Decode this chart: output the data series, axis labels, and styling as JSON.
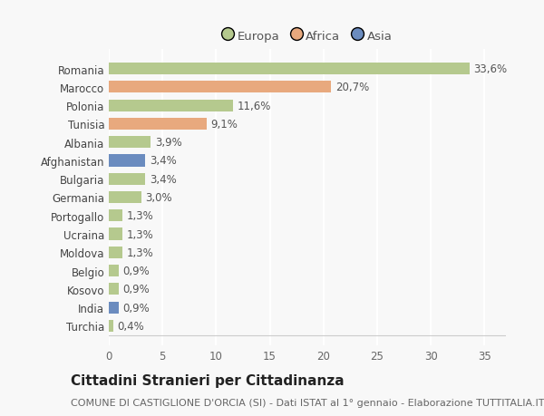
{
  "categories": [
    "Turchia",
    "India",
    "Kosovo",
    "Belgio",
    "Moldova",
    "Ucraina",
    "Portogallo",
    "Germania",
    "Bulgaria",
    "Afghanistan",
    "Albania",
    "Tunisia",
    "Polonia",
    "Marocco",
    "Romania"
  ],
  "values": [
    0.4,
    0.9,
    0.9,
    0.9,
    1.3,
    1.3,
    1.3,
    3.0,
    3.4,
    3.4,
    3.9,
    9.1,
    11.6,
    20.7,
    33.6
  ],
  "labels": [
    "0,4%",
    "0,9%",
    "0,9%",
    "0,9%",
    "1,3%",
    "1,3%",
    "1,3%",
    "3,0%",
    "3,4%",
    "3,4%",
    "3,9%",
    "9,1%",
    "11,6%",
    "20,7%",
    "33,6%"
  ],
  "continents": [
    "Europa",
    "Asia",
    "Europa",
    "Europa",
    "Europa",
    "Europa",
    "Europa",
    "Europa",
    "Europa",
    "Asia",
    "Europa",
    "Africa",
    "Europa",
    "Africa",
    "Europa"
  ],
  "colors": {
    "Europa": "#b5c98e",
    "Africa": "#e8a97e",
    "Asia": "#6b8cbf"
  },
  "legend_order": [
    "Europa",
    "Africa",
    "Asia"
  ],
  "legend_colors": [
    "#b5c98e",
    "#e8a97e",
    "#6b8cbf"
  ],
  "title": "Cittadini Stranieri per Cittadinanza",
  "subtitle": "COMUNE DI CASTIGLIONE D'ORCIA (SI) - Dati ISTAT al 1° gennaio - Elaborazione TUTTITALIA.IT",
  "xlim": [
    0,
    37
  ],
  "xticks": [
    0,
    5,
    10,
    15,
    20,
    25,
    30,
    35
  ],
  "background_color": "#f8f8f8",
  "grid_color": "#ffffff",
  "bar_height": 0.65,
  "label_fontsize": 8.5,
  "tick_fontsize": 8.5,
  "title_fontsize": 11,
  "subtitle_fontsize": 8
}
